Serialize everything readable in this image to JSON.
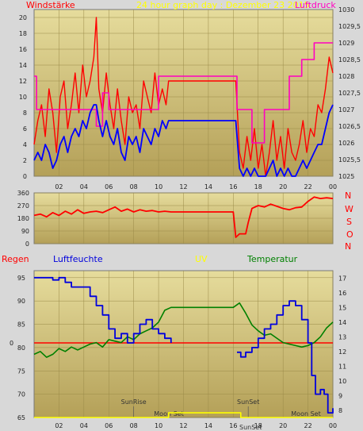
{
  "header": {
    "wind_label": "Windstärke",
    "title": "24 hour graph day : Dezember 23 2015",
    "pressure_label": "Luftdruck"
  },
  "direction": {
    "letters": [
      "N",
      "W",
      "S",
      "O",
      "N"
    ]
  },
  "lower": {
    "rain_label": "Regen",
    "humidity_label": "Luftfeuchte",
    "uv_label": "UV",
    "temp_label": "Temperatur",
    "sunrise": "SunRise",
    "sunset": "SunSet",
    "moonset": "Moon Set",
    "sunset_bottom": "SunSet",
    "moonset_right": "Moon Set"
  },
  "colors": {
    "wind": "#ff0000",
    "wind_avg": "#0000ff",
    "pressure": "#ff00c0",
    "direction": "#ff0000",
    "humidity": "#0000dd",
    "temperature": "#008000",
    "rain": "#ff0000",
    "uv": "#ffff00",
    "title": "#ffff00",
    "plot_bg": "#c8b870"
  },
  "chart_data": [
    {
      "type": "line",
      "name": "wind_pressure",
      "x_ticks": [
        "02",
        "04",
        "06",
        "08",
        "10",
        "12",
        "14",
        "16",
        "18",
        "20",
        "22",
        "00"
      ],
      "xlim": [
        0,
        24
      ],
      "y_left": {
        "label": "Windstärke",
        "ticks": [
          "0",
          "2",
          "4",
          "6",
          "8",
          "10",
          "12",
          "14",
          "16",
          "18",
          "20"
        ],
        "ylim": [
          0,
          21
        ]
      },
      "y_right": {
        "label": "Luftdruck",
        "ticks": [
          "1025",
          "1025,5",
          "1026",
          "1026,5",
          "1027",
          "1027,5",
          "1028",
          "1028,5",
          "1029",
          "1029,5",
          "1030"
        ],
        "ylim": [
          1025,
          1030
        ]
      },
      "series": [
        {
          "name": "Windstärke",
          "axis": "left",
          "x": [
            0,
            0.3,
            0.6,
            0.9,
            1.2,
            1.5,
            1.8,
            2.1,
            2.4,
            2.7,
            3.0,
            3.3,
            3.6,
            3.9,
            4.2,
            4.5,
            4.8,
            5.0,
            5.2,
            5.5,
            5.8,
            6.1,
            6.4,
            6.7,
            7.0,
            7.3,
            7.6,
            7.9,
            8.2,
            8.5,
            8.8,
            9.1,
            9.4,
            9.7,
            10.0,
            10.3,
            10.6,
            10.8,
            11.0,
            16.2,
            16.5,
            16.8,
            17.1,
            17.4,
            17.7,
            18.0,
            18.3,
            18.6,
            18.9,
            19.2,
            19.5,
            19.8,
            20.1,
            20.4,
            20.7,
            21.0,
            21.3,
            21.6,
            21.9,
            22.2,
            22.5,
            22.8,
            23.1,
            23.4,
            23.7,
            24.0
          ],
          "y": [
            4,
            7,
            9,
            5,
            11,
            8,
            3,
            10,
            12,
            6,
            9,
            13,
            8,
            14,
            10,
            12,
            15,
            20,
            11,
            8,
            13,
            9,
            6,
            11,
            7,
            4,
            10,
            8,
            9,
            6,
            12,
            10,
            8,
            13,
            9,
            11,
            9,
            12,
            12,
            12,
            3,
            1,
            5,
            2,
            6,
            1,
            4,
            0,
            3,
            7,
            2,
            5,
            1,
            6,
            3,
            2,
            4,
            7,
            3,
            6,
            5,
            9,
            8,
            11,
            15,
            13
          ]
        },
        {
          "name": "Wind Mittel",
          "axis": "left",
          "x": [
            0,
            0.3,
            0.6,
            0.9,
            1.2,
            1.5,
            1.8,
            2.1,
            2.4,
            2.7,
            3.0,
            3.3,
            3.6,
            3.9,
            4.2,
            4.5,
            4.8,
            5.0,
            5.2,
            5.5,
            5.8,
            6.1,
            6.4,
            6.7,
            7.0,
            7.3,
            7.6,
            7.9,
            8.2,
            8.5,
            8.8,
            9.1,
            9.4,
            9.7,
            10.0,
            10.3,
            10.6,
            10.8,
            11.0,
            16.2,
            16.5,
            16.8,
            17.1,
            17.4,
            17.7,
            18.0,
            18.3,
            18.6,
            18.9,
            19.2,
            19.5,
            19.8,
            20.1,
            20.4,
            20.7,
            21.0,
            21.3,
            21.6,
            21.9,
            22.2,
            22.5,
            22.8,
            23.1,
            23.4,
            23.7,
            24.0
          ],
          "y": [
            2,
            3,
            2,
            4,
            3,
            1,
            2,
            4,
            5,
            3,
            5,
            6,
            5,
            7,
            6,
            8,
            9,
            9,
            7,
            5,
            7,
            5,
            4,
            6,
            3,
            2,
            5,
            4,
            5,
            3,
            6,
            5,
            4,
            6,
            5,
            7,
            6,
            7,
            7,
            7,
            1,
            0,
            1,
            0,
            1,
            0,
            0,
            0,
            1,
            2,
            0,
            1,
            0,
            1,
            0,
            0,
            1,
            2,
            1,
            2,
            3,
            4,
            4,
            6,
            8,
            9
          ]
        },
        {
          "name": "Luftdruck",
          "axis": "right",
          "x": [
            0,
            0.2,
            0.4,
            1.0,
            2.0,
            3.0,
            4.0,
            4.5,
            5.0,
            5.5,
            6.0,
            6.5,
            7.0,
            8.0,
            9.0,
            9.5,
            10.0,
            10.5,
            11.0,
            12.0,
            14.0,
            16.0,
            16.3,
            16.5,
            17.0,
            17.5,
            18.0,
            18.5,
            19.0,
            20.0,
            20.5,
            21.0,
            21.5,
            22.0,
            22.5,
            23.0,
            23.5,
            24.0
          ],
          "y": [
            1028.0,
            1027.0,
            1027.0,
            1027.0,
            1027.0,
            1027.0,
            1027.0,
            1027.0,
            1026.5,
            1027.5,
            1027.0,
            1027.0,
            1027.0,
            1027.0,
            1027.0,
            1027.0,
            1028.0,
            1028.0,
            1028.0,
            1028.0,
            1028.0,
            1028.0,
            1027.0,
            1027.0,
            1027.0,
            1026.0,
            1026.0,
            1027.0,
            1027.0,
            1027.0,
            1028.0,
            1028.0,
            1028.5,
            1028.5,
            1029.0,
            1029.0,
            1029.0,
            1029.0
          ]
        }
      ]
    },
    {
      "type": "line",
      "name": "wind_direction",
      "xlim": [
        0,
        24
      ],
      "y_ticks": [
        "360",
        "270",
        "180",
        "90",
        "0"
      ],
      "ylim": [
        0,
        360
      ],
      "series": [
        {
          "name": "Windrichtung",
          "x": [
            0,
            0.5,
            1,
            1.5,
            2,
            2.5,
            3,
            3.5,
            4,
            4.5,
            5,
            5.5,
            6,
            6.5,
            7,
            7.5,
            8,
            8.5,
            9,
            9.5,
            10,
            10.5,
            11,
            12,
            14,
            16,
            16.2,
            16.5,
            17,
            17.2,
            17.5,
            18,
            18.5,
            19,
            19.5,
            20,
            20.5,
            21,
            21.5,
            22,
            22.5,
            23,
            23.5,
            24
          ],
          "y": [
            200,
            210,
            190,
            220,
            200,
            230,
            210,
            240,
            215,
            225,
            230,
            220,
            240,
            260,
            230,
            245,
            225,
            240,
            230,
            235,
            225,
            230,
            225,
            225,
            225,
            225,
            45,
            70,
            70,
            150,
            250,
            270,
            260,
            280,
            265,
            250,
            240,
            255,
            260,
            300,
            330,
            320,
            325,
            320
          ]
        }
      ]
    },
    {
      "type": "line",
      "name": "humidity_temperature",
      "xlim": [
        0,
        24
      ],
      "y_left": {
        "label": "Luftfeuchte",
        "ticks": [
          "65",
          "70",
          "75",
          "80",
          "85",
          "90",
          "95"
        ],
        "ylim": [
          65,
          96.5
        ]
      },
      "y_right": {
        "label": "Temperatur",
        "ticks": [
          "8",
          "9",
          "10",
          "11",
          "12",
          "13",
          "14",
          "15",
          "16",
          "17"
        ],
        "ylim": [
          7.5,
          17.5
        ]
      },
      "series": [
        {
          "name": "Luftfeuchte",
          "axis": "left",
          "x": [
            0,
            0.5,
            1,
            1.5,
            2,
            2.5,
            3,
            3.5,
            4,
            4.5,
            5,
            5.5,
            6,
            6.5,
            7,
            7.5,
            8,
            8.5,
            9,
            9.5,
            10,
            10.5,
            11,
            16.0,
            16.3,
            16.6,
            17.0,
            17.5,
            18.0,
            18.5,
            19,
            19.5,
            20,
            20.5,
            21,
            21.5,
            22,
            22.3,
            22.6,
            23.0,
            23.3,
            23.6,
            24
          ],
          "y": [
            95,
            95,
            95,
            94.5,
            95,
            94,
            93,
            93,
            93,
            91,
            89,
            87,
            84,
            82,
            83,
            81,
            83,
            85,
            86,
            84,
            83,
            82,
            81,
            null,
            79,
            78,
            79,
            80,
            82,
            84,
            85,
            87,
            89,
            90,
            89,
            86,
            81,
            74,
            70,
            71,
            70,
            66,
            67
          ]
        },
        {
          "name": "Temperatur",
          "axis": "right",
          "x": [
            0,
            0.5,
            1,
            1.5,
            2,
            2.5,
            3,
            3.5,
            4,
            4.5,
            5,
            5.5,
            6,
            6.5,
            7,
            7.5,
            8,
            8.5,
            9,
            9.5,
            10,
            10.5,
            11,
            12,
            14,
            16,
            16.5,
            17,
            17.5,
            18,
            18.5,
            19,
            19.5,
            20,
            20.5,
            21,
            21.5,
            22,
            22.5,
            23,
            23.5,
            24
          ],
          "y": [
            11.8,
            12.0,
            11.6,
            11.8,
            12.2,
            12.0,
            12.3,
            12.1,
            12.3,
            12.5,
            12.6,
            12.3,
            12.8,
            12.7,
            12.6,
            13.0,
            12.8,
            13.2,
            13.4,
            13.6,
            14.0,
            14.8,
            15.0,
            15.0,
            15.0,
            15.0,
            15.3,
            14.6,
            13.8,
            13.4,
            13.1,
            13.2,
            12.9,
            12.6,
            12.5,
            12.4,
            12.3,
            12.4,
            12.6,
            13.0,
            13.6,
            14.0
          ]
        },
        {
          "name": "Regen",
          "axis": "left",
          "x": [
            0,
            24
          ],
          "y": [
            81,
            81
          ]
        },
        {
          "name": "UV",
          "axis": "left",
          "x": [
            0,
            10,
            10.8,
            16,
            16.6,
            24
          ],
          "y": [
            65,
            65,
            66,
            66,
            65,
            65
          ]
        }
      ]
    }
  ]
}
